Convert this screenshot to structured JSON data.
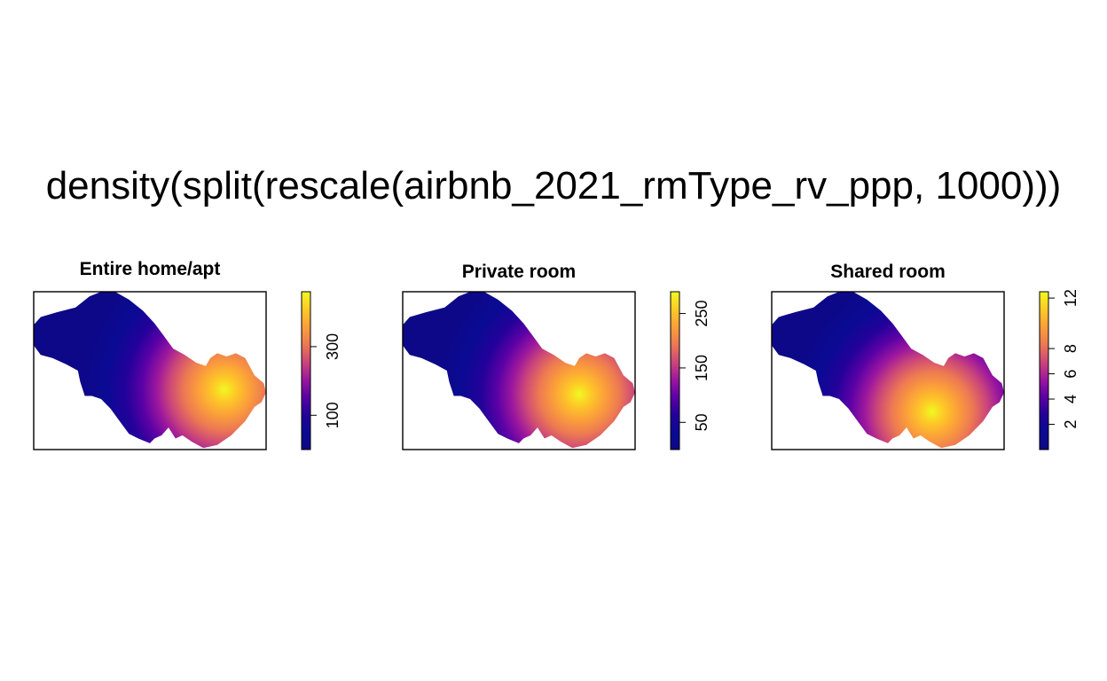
{
  "main_title": "density(split(rescale(airbnb_2021_rmType_rv_ppp, 1000)))",
  "colors": {
    "palette": [
      "#0d0887",
      "#0a0a94",
      "#24019a",
      "#5c01a6",
      "#9c179e",
      "#cc4778",
      "#ed7953",
      "#fb9f3a",
      "#fdca26",
      "#f0f921"
    ],
    "frame": "#000000",
    "background": "#ffffff"
  },
  "chart_data": [
    {
      "type": "heatmap",
      "title": "Entire home/apt",
      "legend": {
        "ticks": [
          100,
          300
        ],
        "range": [
          0,
          460
        ]
      },
      "hotspot": {
        "x": 0.82,
        "y": 0.62
      }
    },
    {
      "type": "heatmap",
      "title": "Private room",
      "legend": {
        "ticks": [
          50,
          150,
          250
        ],
        "range": [
          0,
          290
        ]
      },
      "hotspot": {
        "x": 0.76,
        "y": 0.65
      }
    },
    {
      "type": "heatmap",
      "title": "Shared room",
      "legend": {
        "ticks": [
          2,
          4,
          6,
          8,
          12
        ],
        "range": [
          0,
          12.5
        ]
      },
      "hotspot": {
        "x": 0.69,
        "y": 0.76
      }
    }
  ]
}
